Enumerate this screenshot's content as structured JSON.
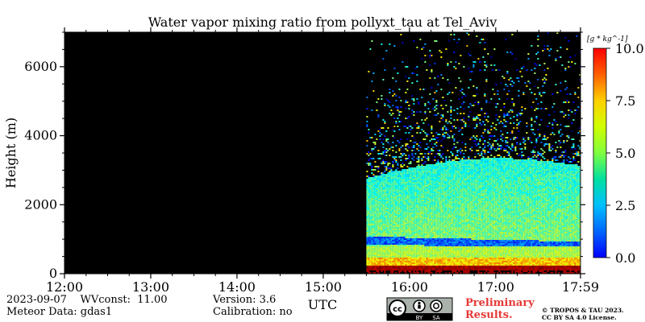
{
  "chart_data": {
    "type": "heatmap",
    "title": "Water vapor mixing ratio from pollyxt_tau at Tel_Aviv",
    "xlabel": "UTC",
    "ylabel": "Height (m)",
    "x_ticks": [
      "12:00",
      "13:00",
      "14:00",
      "15:00",
      "16:00",
      "17:00",
      "17:59"
    ],
    "x_tick_hours": [
      12,
      13,
      14,
      15,
      16,
      17,
      17.983
    ],
    "xlim_hours": [
      12,
      17.983
    ],
    "y_ticks": [
      0,
      2000,
      4000,
      6000
    ],
    "ylim": [
      0,
      7000
    ],
    "colorbar": {
      "unit": "[g * kg^-1]",
      "ticks": [
        "0.0",
        "2.5",
        "5.0",
        "7.5",
        "10.0"
      ],
      "range": [
        0,
        10
      ],
      "colormap": "jet"
    },
    "data_start_hour": 15.5,
    "background_color": "#000000"
  },
  "info": {
    "date_line": "2023-09-07",
    "wvconst_label": "WVconst:",
    "wvconst_value": "11.00",
    "meteor": "Meteor Data: gdas1",
    "version": "Version: 3.6",
    "calibration": "Calibration: no"
  },
  "license": {
    "cc": "cc",
    "by": "BY",
    "sa": "SA",
    "preliminary_line1": "Preliminary",
    "preliminary_line2": "Results.",
    "copyright_line1": "© TROPOS & TAU 2023.",
    "copyright_line2": "CC BY SA 4.0 License."
  }
}
